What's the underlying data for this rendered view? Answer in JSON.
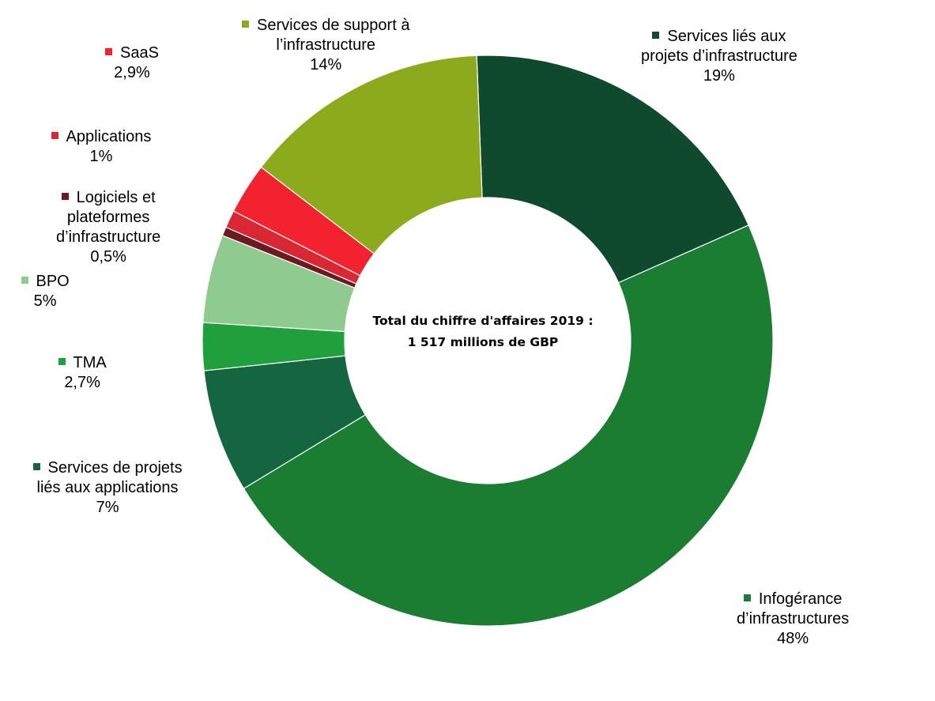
{
  "chart_data": {
    "type": "pie",
    "donut": true,
    "center_text": [
      "Total du chiffre d'affaires 2019 :",
      "1 517 millions de GBP"
    ],
    "legend_placement": "labels next to slices",
    "slices": [
      {
        "label_lines": [
          "Services liés aux",
          "projets d’infrastructure"
        ],
        "value_label": "19%",
        "value": 19,
        "color": "#0f4a2f"
      },
      {
        "label_lines": [
          "Infogérance",
          "d’infrastructures"
        ],
        "value_label": "48%",
        "value": 48,
        "color": "#1a7d32"
      },
      {
        "label_lines": [
          "Services de projets",
          "liés aux applications"
        ],
        "value_label": "7%",
        "value": 7,
        "color": "#136640"
      },
      {
        "label_lines": [
          "TMA"
        ],
        "value_label": "2,7%",
        "value": 2.7,
        "color": "#1fa03c"
      },
      {
        "label_lines": [
          "BPO"
        ],
        "value_label": "5%",
        "value": 5,
        "color": "#8fcb8f"
      },
      {
        "label_lines": [
          "Logiciels et",
          "plateformes",
          "d’infrastructure"
        ],
        "value_label": "0,5%",
        "value": 0.5,
        "color": "#6b1a22"
      },
      {
        "label_lines": [
          "Applications"
        ],
        "value_label": "1%",
        "value": 1,
        "color": "#d92834"
      },
      {
        "label_lines": [
          "SaaS"
        ],
        "value_label": "2,9%",
        "value": 2.9,
        "color": "#f2222f"
      },
      {
        "label_lines": [
          "Services de support à",
          "l’infrastructure"
        ],
        "value_label": "14%",
        "value": 14,
        "color": "#8daa1c"
      }
    ]
  }
}
